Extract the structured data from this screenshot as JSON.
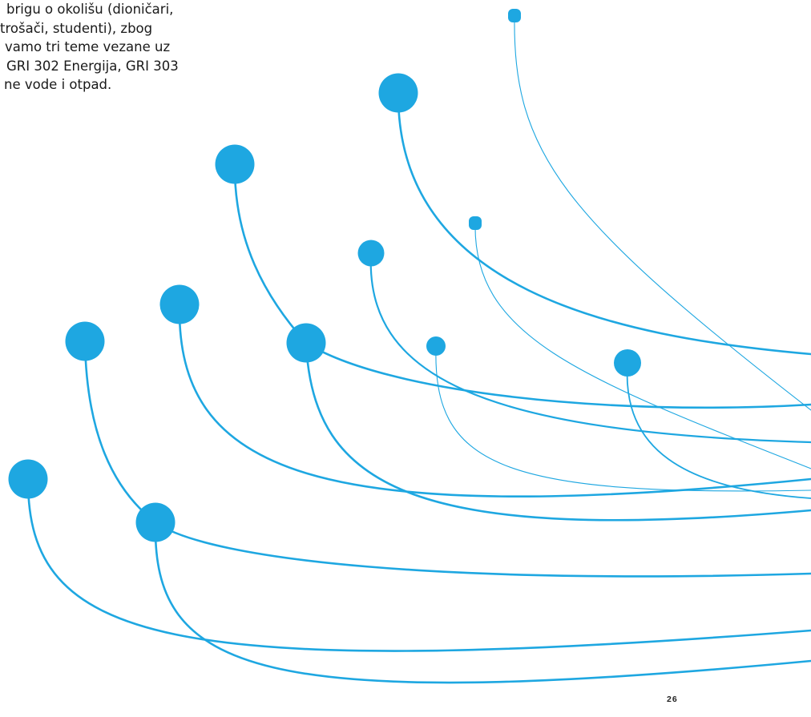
{
  "intro_text": {
    "lines": [
      " brigu o okolišu (dioničari,",
      "trošači, studenti), zbog",
      "vamo tri teme vezane uz",
      " GRI 302 Energija, GRI 303",
      "ne vode i otpad."
    ]
  },
  "page_number": "26",
  "colors": {
    "accent": "#1ea7e1",
    "text": "#1a1a1a"
  },
  "decoration": {
    "description_icon": "bubble-stem-network-illustration"
  }
}
